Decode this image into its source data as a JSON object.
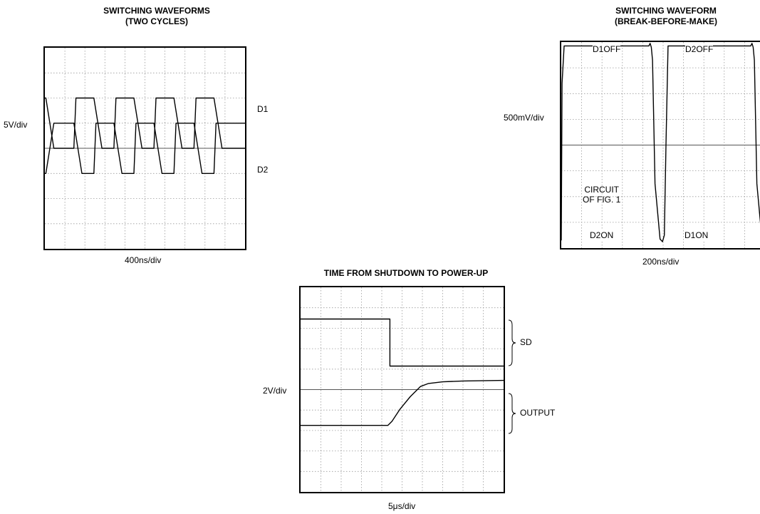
{
  "chart_data": [
    {
      "type": "line",
      "title": "SWITCHING WAVEFORMS\n(TWO CYCLES)",
      "ylabel": "5V/div",
      "xlabel": "400ns/div",
      "grid": true,
      "divisions": {
        "x": 10,
        "y": 8
      },
      "series": [
        {
          "name": "D1",
          "x": [
            0,
            0.05,
            0.45,
            1.2,
            1.45,
            1.55,
            2.2,
            2.45,
            2.85,
            3.2,
            3.45,
            3.55,
            4.2,
            4.45,
            4.85,
            5.2,
            5.45,
            5.55,
            6.2,
            6.45,
            6.85,
            7.2,
            7.45,
            7.55,
            8.2,
            8.45,
            8.85,
            9.2,
            10.0
          ],
          "y": [
            6.0,
            6.0,
            4.0,
            4.0,
            4.0,
            6.0,
            6.0,
            6.0,
            4.0,
            4.0,
            4.0,
            6.0,
            6.0,
            6.0,
            4.0,
            4.0,
            4.0,
            6.0,
            6.0,
            6.0,
            4.0,
            4.0,
            4.0,
            6.0,
            6.0,
            6.0,
            4.0,
            4.0,
            4.0
          ]
        },
        {
          "name": "D2",
          "x": [
            0,
            0.05,
            0.45,
            1.2,
            1.45,
            1.85,
            2.2,
            2.45,
            2.55,
            3.2,
            3.45,
            3.85,
            4.2,
            4.45,
            4.55,
            5.2,
            5.45,
            5.85,
            6.2,
            6.45,
            6.55,
            7.2,
            7.45,
            7.85,
            8.2,
            8.45,
            8.55,
            9.2,
            10.0
          ],
          "y": [
            3.0,
            3.0,
            5.0,
            5.0,
            5.0,
            3.0,
            3.0,
            3.0,
            5.0,
            5.0,
            5.0,
            3.0,
            3.0,
            3.0,
            5.0,
            5.0,
            5.0,
            3.0,
            3.0,
            3.0,
            5.0,
            5.0,
            5.0,
            3.0,
            3.0,
            3.0,
            5.0,
            5.0,
            5.0
          ]
        }
      ]
    },
    {
      "type": "line",
      "title": "SWITCHING WAVEFORM\n(BREAK-BEFORE-MAKE)",
      "ylabel": "500mV/div",
      "xlabel": "200ns/div",
      "grid": true,
      "divisions": {
        "x": 10,
        "y": 8
      },
      "annotations": [
        "D1OFF",
        "D2OFF",
        "CIRCUIT\nOF FIG. 1",
        "D2ON",
        "D1ON"
      ],
      "series": [
        {
          "name": "",
          "x": [
            0,
            0.04,
            0.14,
            4.3,
            4.36,
            4.42,
            4.48,
            4.6,
            4.85,
            4.97,
            5.06,
            5.14,
            5.24,
            9.3,
            9.36,
            9.42,
            9.48,
            9.6,
            9.85,
            9.97,
            10.06,
            10.0
          ],
          "y": [
            0.3,
            6.4,
            7.85,
            7.85,
            7.95,
            7.8,
            7.3,
            2.5,
            0.35,
            0.25,
            0.5,
            4.0,
            7.85,
            7.85,
            7.95,
            7.8,
            7.3,
            2.5,
            0.35,
            0.25,
            0.5,
            0.5
          ]
        }
      ]
    },
    {
      "type": "line",
      "title": "TIME FROM SHUTDOWN TO POWER-UP",
      "ylabel": "2V/div",
      "xlabel": "5μs/div",
      "grid": true,
      "divisions": {
        "x": 10,
        "y": 10
      },
      "annotations": [
        "SD",
        "OUTPUT"
      ],
      "series": [
        {
          "name": "SD",
          "x": [
            0,
            4.4,
            4.4,
            10.0
          ],
          "y": [
            8.45,
            8.45,
            6.15,
            6.15
          ]
        },
        {
          "name": "OUTPUT",
          "x": [
            0,
            4.3,
            4.5,
            4.9,
            5.4,
            5.9,
            6.3,
            7.0,
            8.0,
            10.0
          ],
          "y": [
            3.25,
            3.25,
            3.45,
            4.05,
            4.65,
            5.15,
            5.3,
            5.38,
            5.42,
            5.45
          ]
        }
      ]
    }
  ]
}
